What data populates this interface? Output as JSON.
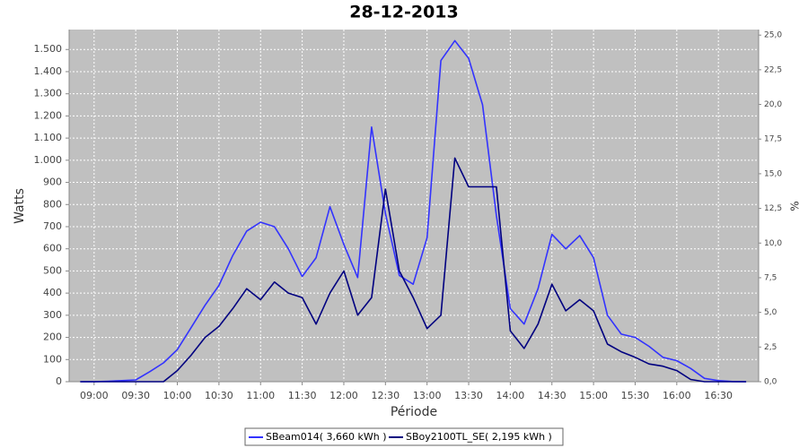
{
  "chart_data": {
    "type": "line",
    "title": "28-12-2013",
    "x_label": "Période",
    "y_label": "Watts",
    "y2_label": "%",
    "x": [
      "08:50",
      "09:00",
      "09:10",
      "09:20",
      "09:30",
      "09:40",
      "09:50",
      "10:00",
      "10:10",
      "10:20",
      "10:30",
      "10:40",
      "10:50",
      "11:00",
      "11:10",
      "11:20",
      "11:30",
      "11:40",
      "11:50",
      "12:00",
      "12:10",
      "12:20",
      "12:30",
      "12:40",
      "12:50",
      "13:00",
      "13:10",
      "13:20",
      "13:30",
      "13:40",
      "13:50",
      "14:00",
      "14:10",
      "14:20",
      "14:30",
      "14:40",
      "14:50",
      "15:00",
      "15:10",
      "15:20",
      "15:30",
      "15:40",
      "15:50",
      "16:00",
      "16:10",
      "16:20",
      "16:30",
      "16:40",
      "16:50"
    ],
    "series": [
      {
        "name": "SBeam014( 3,660 kWh )",
        "color": "#3333ff",
        "values": [
          0,
          0,
          2,
          5,
          8,
          45,
          85,
          145,
          245,
          345,
          435,
          570,
          680,
          720,
          700,
          600,
          475,
          560,
          790,
          620,
          470,
          1150,
          760,
          480,
          440,
          650,
          1450,
          1540,
          1460,
          1250,
          750,
          330,
          260,
          420,
          665,
          600,
          660,
          560,
          300,
          215,
          200,
          160,
          110,
          95,
          60,
          15,
          5,
          1,
          0
        ]
      },
      {
        "name": "SBoy2100TL_SE( 2,195 kWh )",
        "color": "#000080",
        "values": [
          0,
          0,
          0,
          0,
          0,
          0,
          0,
          50,
          120,
          200,
          250,
          330,
          420,
          370,
          450,
          400,
          380,
          260,
          400,
          500,
          300,
          380,
          870,
          500,
          380,
          240,
          300,
          1010,
          880,
          880,
          880,
          230,
          150,
          260,
          440,
          320,
          370,
          320,
          170,
          135,
          110,
          80,
          70,
          50,
          10,
          0,
          0,
          0,
          0
        ]
      }
    ],
    "xlim": [
      "08:42",
      "16:59"
    ],
    "xticks": [
      "09:00",
      "09:30",
      "10:00",
      "10:30",
      "11:00",
      "11:30",
      "12:00",
      "12:30",
      "13:00",
      "13:30",
      "14:00",
      "14:30",
      "15:00",
      "15:30",
      "16:00",
      "16:30"
    ],
    "ylim": [
      0,
      1590
    ],
    "yticks": [
      0,
      100,
      200,
      300,
      400,
      500,
      600,
      700,
      800,
      900,
      {
        "value": 1000,
        "label": "1.000"
      },
      {
        "value": 1100,
        "label": "1.100"
      },
      {
        "value": 1200,
        "label": "1.200"
      },
      {
        "value": 1300,
        "label": "1.300"
      },
      {
        "value": 1400,
        "label": "1.400"
      },
      {
        "value": 1500,
        "label": "1.500"
      }
    ],
    "y2lim": [
      0,
      25.4
    ],
    "y2ticks": [
      {
        "value": 0,
        "label": "0,0"
      },
      {
        "value": 2.5,
        "label": "2,5"
      },
      {
        "value": 5,
        "label": "5,0"
      },
      {
        "value": 7.5,
        "label": "7,5"
      },
      {
        "value": 10,
        "label": "10,0"
      },
      {
        "value": 12.5,
        "label": "12,5"
      },
      {
        "value": 15,
        "label": "15,0"
      },
      {
        "value": 17.5,
        "label": "17,5"
      },
      {
        "value": 20,
        "label": "20,0"
      },
      {
        "value": 22.5,
        "label": "22,5"
      },
      {
        "value": 25,
        "label": "25,0"
      }
    ],
    "grid": true
  }
}
